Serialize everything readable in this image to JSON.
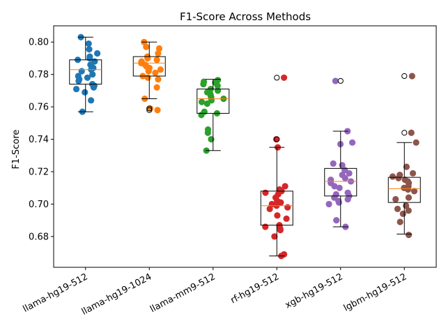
{
  "chart_data": {
    "type": "box",
    "title": "F1-Score Across Methods",
    "xlabel": "",
    "ylabel": "F1-Score",
    "ylim": [
      0.661,
      0.81
    ],
    "yticks": [
      "0.68",
      "0.70",
      "0.72",
      "0.74",
      "0.76",
      "0.78",
      "0.80"
    ],
    "grid": false,
    "categories": [
      "llama-hg19-512",
      "llama-hg19-1024",
      "llama-mm9-512",
      "rf-hg19-512",
      "xgb-hg19-512",
      "lgbm-hg19-512"
    ],
    "series": [
      {
        "category": "llama-hg19-512",
        "color": "#1f77b4",
        "box": {
          "q1": 0.774,
          "median": 0.783,
          "q3": 0.789,
          "whisker_low": 0.757,
          "whisker_high": 0.803
        },
        "outliers": [],
        "points": [
          0.7955,
          0.803,
          0.799,
          0.793,
          0.791,
          0.79,
          0.789,
          0.788,
          0.786,
          0.784,
          0.783,
          0.782,
          0.78,
          0.779,
          0.778,
          0.777,
          0.776,
          0.774,
          0.773,
          0.772,
          0.771,
          0.769,
          0.764,
          0.757
        ]
      },
      {
        "category": "llama-hg19-1024",
        "color": "#ff7f0e",
        "box": {
          "q1": 0.779,
          "median": 0.787,
          "q3": 0.791,
          "whisker_low": 0.765,
          "whisker_high": 0.8
        },
        "outliers": [
          0.758,
          0.759
        ],
        "points": [
          0.8,
          0.797,
          0.796,
          0.793,
          0.791,
          0.79,
          0.789,
          0.788,
          0.787,
          0.786,
          0.785,
          0.784,
          0.783,
          0.782,
          0.781,
          0.779,
          0.778,
          0.777,
          0.772,
          0.765,
          0.759,
          0.758
        ]
      },
      {
        "category": "llama-mm9-512",
        "color": "#2ca02c",
        "box": {
          "q1": 0.756,
          "median": 0.765,
          "q3": 0.771,
          "whisker_low": 0.733,
          "whisker_high": 0.777
        },
        "outliers": [],
        "points": [
          0.7765,
          0.7755,
          0.775,
          0.774,
          0.773,
          0.771,
          0.77,
          0.769,
          0.768,
          0.767,
          0.766,
          0.765,
          0.764,
          0.763,
          0.762,
          0.757,
          0.756,
          0.755,
          0.746,
          0.744,
          0.74,
          0.733
        ]
      },
      {
        "category": "rf-hg19-512",
        "color": "#d62728",
        "box": {
          "q1": 0.687,
          "median": 0.699,
          "q3": 0.708,
          "whisker_low": 0.668,
          "whisker_high": 0.735
        },
        "outliers": [
          0.778,
          0.74
        ],
        "points": [
          0.778,
          0.74,
          0.735,
          0.711,
          0.709,
          0.708,
          0.707,
          0.706,
          0.704,
          0.702,
          0.701,
          0.7,
          0.699,
          0.698,
          0.697,
          0.693,
          0.691,
          0.687,
          0.686,
          0.685,
          0.684,
          0.68,
          0.669,
          0.668
        ]
      },
      {
        "category": "xgb-hg19-512",
        "color": "#9467bd",
        "box": {
          "q1": 0.705,
          "median": 0.714,
          "q3": 0.722,
          "whisker_low": 0.686,
          "whisker_high": 0.745
        },
        "outliers": [
          0.776
        ],
        "points": [
          0.776,
          0.745,
          0.738,
          0.737,
          0.725,
          0.724,
          0.721,
          0.719,
          0.718,
          0.716,
          0.715,
          0.714,
          0.713,
          0.711,
          0.71,
          0.707,
          0.706,
          0.705,
          0.704,
          0.703,
          0.702,
          0.701,
          0.7,
          0.69,
          0.686
        ]
      },
      {
        "category": "lgbm-hg19-512",
        "color": "#8c564b",
        "box": {
          "q1": 0.701,
          "median": 0.7095,
          "q3": 0.7165,
          "whisker_low": 0.6815,
          "whisker_high": 0.738
        },
        "outliers": [
          0.779,
          0.744
        ],
        "points": [
          0.779,
          0.744,
          0.738,
          0.723,
          0.719,
          0.718,
          0.717,
          0.716,
          0.715,
          0.714,
          0.713,
          0.711,
          0.71,
          0.709,
          0.708,
          0.704,
          0.703,
          0.699,
          0.697,
          0.696,
          0.694,
          0.689,
          0.681
        ]
      }
    ],
    "median_color": "#ff7f0e",
    "box_color": "#000000",
    "outlier_marker": "open-circle"
  }
}
